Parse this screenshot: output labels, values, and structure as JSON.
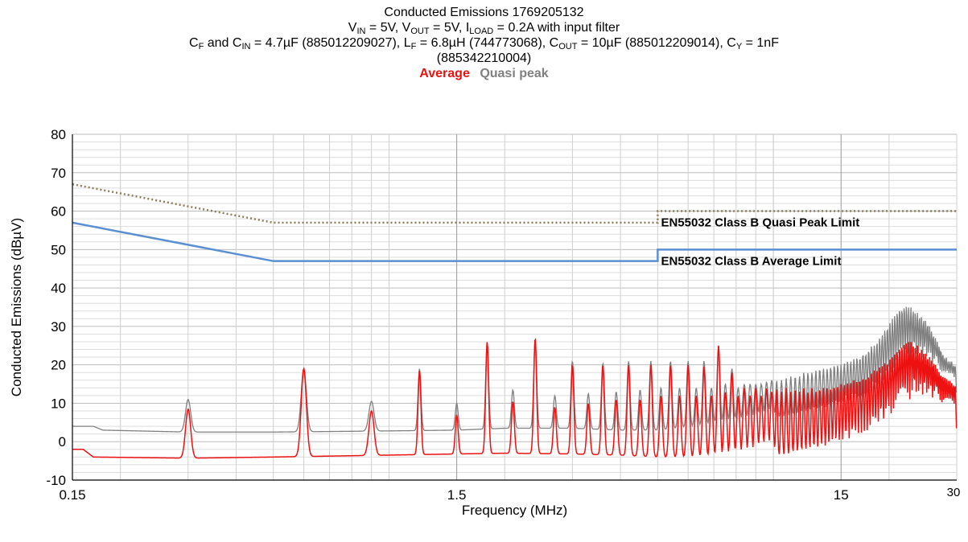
{
  "title": {
    "line1": "Conducted Emissions 1769205132",
    "line2": [
      {
        "t": "V"
      },
      {
        "t": "IN",
        "sub": true
      },
      {
        "t": " = 5V, V"
      },
      {
        "t": "OUT",
        "sub": true
      },
      {
        "t": " = 5V, I"
      },
      {
        "t": "LOAD",
        "sub": true
      },
      {
        "t": " = 0.2A with input filter"
      }
    ],
    "line3": [
      {
        "t": "C"
      },
      {
        "t": "F",
        "sub": true
      },
      {
        "t": " and C"
      },
      {
        "t": "IN",
        "sub": true
      },
      {
        "t": " = 4.7µF (885012209027), L"
      },
      {
        "t": "F",
        "sub": true
      },
      {
        "t": " = 6.8µH (744773068), C"
      },
      {
        "t": "OUT",
        "sub": true
      },
      {
        "t": " = 10µF (885012209014), C"
      },
      {
        "t": "Y",
        "sub": true
      },
      {
        "t": " = 1nF"
      }
    ],
    "line4": "(885342210004)"
  },
  "legend": {
    "average": "Average",
    "quasi_peak": "Quasi peak"
  },
  "colors": {
    "average": "#ee1111",
    "quasi_peak": "#808080",
    "avg_limit": "#5b8fd4",
    "qp_limit": "#8c7d58",
    "grid": "#c8c8c8",
    "axis": "#000000"
  },
  "chart_data": {
    "type": "line",
    "x_scale": "log",
    "xlabel": "Frequency (MHz)",
    "ylabel": "Conducted Emissions (dBµV)",
    "xlim": [
      0.15,
      30
    ],
    "ylim": [
      -10,
      80
    ],
    "y_ticks": [
      -10,
      0,
      10,
      20,
      30,
      40,
      50,
      60,
      70,
      80
    ],
    "x_ticks": [
      {
        "v": 0.15,
        "label": "0.15"
      },
      {
        "v": 1.5,
        "label": "1.5"
      },
      {
        "v": 15,
        "label": "15"
      },
      {
        "v": 30,
        "label": "30"
      }
    ],
    "grid": true,
    "limits": [
      {
        "name": "EN55032 Class B Quasi Peak Limit",
        "style": "dotted",
        "points": [
          [
            0.15,
            67
          ],
          [
            0.5,
            57
          ],
          [
            5,
            57
          ],
          [
            5,
            60
          ],
          [
            30,
            60
          ]
        ]
      },
      {
        "name": "EN55032 Class B Average Limit",
        "style": "solid",
        "points": [
          [
            0.15,
            57
          ],
          [
            0.5,
            47
          ],
          [
            5,
            47
          ],
          [
            5,
            50
          ],
          [
            30,
            50
          ]
        ]
      }
    ],
    "quasi_peak_baseline": [
      [
        0.15,
        4
      ],
      [
        0.17,
        4
      ],
      [
        0.18,
        3
      ],
      [
        0.3,
        2.5
      ],
      [
        0.5,
        2.5
      ],
      [
        1,
        2.8
      ],
      [
        1.5,
        3
      ],
      [
        2,
        3.5
      ],
      [
        3,
        3.5
      ],
      [
        4,
        3
      ],
      [
        5,
        3
      ],
      [
        8,
        5
      ],
      [
        15,
        8
      ],
      [
        30,
        10
      ]
    ],
    "average_baseline": [
      [
        0.15,
        -2
      ],
      [
        0.16,
        -2
      ],
      [
        0.17,
        -4
      ],
      [
        0.3,
        -4.3
      ],
      [
        0.5,
        -4
      ],
      [
        1,
        -3.5
      ],
      [
        1.5,
        -3.2
      ],
      [
        2,
        -3
      ],
      [
        3,
        -3.2
      ],
      [
        4,
        -3.5
      ],
      [
        5,
        -4
      ],
      [
        8,
        -4.3
      ],
      [
        15,
        -3
      ],
      [
        30,
        -1
      ]
    ],
    "peaks": [
      {
        "f": 0.3,
        "avg": 8.5,
        "qp": 11
      },
      {
        "f": 0.6,
        "avg": 19,
        "qp": 19
      },
      {
        "f": 0.9,
        "avg": 8,
        "qp": 10.5
      },
      {
        "f": 1.2,
        "avg": 18.5,
        "qp": 19
      },
      {
        "f": 1.5,
        "avg": 7,
        "qp": 10
      },
      {
        "f": 1.8,
        "avg": 26,
        "qp": 26
      },
      {
        "f": 2.1,
        "avg": 10.5,
        "qp": 13.5
      },
      {
        "f": 2.4,
        "avg": 27,
        "qp": 27
      },
      {
        "f": 2.7,
        "avg": 9,
        "qp": 12
      },
      {
        "f": 3.0,
        "avg": 20,
        "qp": 21
      },
      {
        "f": 3.3,
        "avg": 10,
        "qp": 12.5
      },
      {
        "f": 3.6,
        "avg": 20,
        "qp": 20.5
      },
      {
        "f": 3.9,
        "avg": 11,
        "qp": 13
      },
      {
        "f": 4.2,
        "avg": 20,
        "qp": 21
      },
      {
        "f": 4.5,
        "avg": 11,
        "qp": 13.5
      },
      {
        "f": 4.8,
        "avg": 20,
        "qp": 21
      },
      {
        "f": 5.1,
        "avg": 12,
        "qp": 14
      },
      {
        "f": 5.4,
        "avg": 20,
        "qp": 21
      },
      {
        "f": 5.7,
        "avg": 12,
        "qp": 14
      },
      {
        "f": 6.0,
        "avg": 20,
        "qp": 21
      },
      {
        "f": 6.3,
        "avg": 12,
        "qp": 14
      },
      {
        "f": 6.6,
        "avg": 19.5,
        "qp": 21
      },
      {
        "f": 6.9,
        "avg": 12,
        "qp": 14
      },
      {
        "f": 7.2,
        "avg": 25,
        "qp": 25
      },
      {
        "f": 7.5,
        "avg": 13,
        "qp": 15
      },
      {
        "f": 7.8,
        "avg": 18,
        "qp": 19
      },
      {
        "f": 8.1,
        "avg": 12,
        "qp": 14
      },
      {
        "f": 8.4,
        "avg": 14,
        "qp": 15
      },
      {
        "f": 8.7,
        "avg": 12,
        "qp": 15
      },
      {
        "f": 9.0,
        "avg": 14,
        "qp": 15
      },
      {
        "f": 9.3,
        "avg": 12,
        "qp": 15
      },
      {
        "f": 9.6,
        "avg": 14,
        "qp": 15.5
      },
      {
        "f": 9.9,
        "avg": 13,
        "qp": 16
      },
      {
        "f": 10.2,
        "avg": 14,
        "qp": 16
      },
      {
        "f": 10.5,
        "avg": 13,
        "qp": 16
      },
      {
        "f": 10.8,
        "avg": 14,
        "qp": 16.5
      },
      {
        "f": 11.1,
        "avg": 13,
        "qp": 17
      },
      {
        "f": 11.4,
        "avg": 14,
        "qp": 17
      },
      {
        "f": 11.7,
        "avg": 13,
        "qp": 17
      },
      {
        "f": 12.0,
        "avg": 14,
        "qp": 18
      },
      {
        "f": 12.3,
        "avg": 13,
        "qp": 18
      },
      {
        "f": 12.6,
        "avg": 14,
        "qp": 18
      },
      {
        "f": 12.9,
        "avg": 13,
        "qp": 18.5
      },
      {
        "f": 13.2,
        "avg": 14,
        "qp": 19
      },
      {
        "f": 13.5,
        "avg": 14,
        "qp": 19
      },
      {
        "f": 13.8,
        "avg": 14,
        "qp": 19
      },
      {
        "f": 14.1,
        "avg": 14,
        "qp": 19.5
      },
      {
        "f": 14.4,
        "avg": 14.5,
        "qp": 20
      },
      {
        "f": 14.7,
        "avg": 14.5,
        "qp": 20
      },
      {
        "f": 15.0,
        "avg": 15,
        "qp": 20
      },
      {
        "f": 15.3,
        "avg": 15,
        "qp": 20.5
      },
      {
        "f": 15.6,
        "avg": 15.5,
        "qp": 21
      },
      {
        "f": 15.9,
        "avg": 15.5,
        "qp": 21
      },
      {
        "f": 16.2,
        "avg": 16,
        "qp": 21.5
      },
      {
        "f": 16.5,
        "avg": 16,
        "qp": 22
      },
      {
        "f": 16.8,
        "avg": 16.5,
        "qp": 22
      },
      {
        "f": 17.1,
        "avg": 17,
        "qp": 23
      },
      {
        "f": 17.4,
        "avg": 17,
        "qp": 23
      },
      {
        "f": 17.7,
        "avg": 17.5,
        "qp": 24
      },
      {
        "f": 18.0,
        "avg": 18,
        "qp": 25
      },
      {
        "f": 18.3,
        "avg": 18.5,
        "qp": 25
      },
      {
        "f": 18.6,
        "avg": 19,
        "qp": 26
      },
      {
        "f": 18.9,
        "avg": 19.5,
        "qp": 27
      },
      {
        "f": 19.2,
        "avg": 20,
        "qp": 28
      },
      {
        "f": 19.5,
        "avg": 20.5,
        "qp": 29
      },
      {
        "f": 19.8,
        "avg": 21,
        "qp": 30
      },
      {
        "f": 20.1,
        "avg": 21.5,
        "qp": 31
      },
      {
        "f": 20.4,
        "avg": 22,
        "qp": 32
      },
      {
        "f": 20.7,
        "avg": 23,
        "qp": 33
      },
      {
        "f": 21.0,
        "avg": 24,
        "qp": 34
      },
      {
        "f": 21.3,
        "avg": 25,
        "qp": 35
      },
      {
        "f": 21.6,
        "avg": 25.5,
        "qp": 35
      },
      {
        "f": 21.9,
        "avg": 26,
        "qp": 35.5
      },
      {
        "f": 22.2,
        "avg": 26,
        "qp": 35.5
      },
      {
        "f": 22.5,
        "avg": 26,
        "qp": 35
      },
      {
        "f": 22.8,
        "avg": 26,
        "qp": 35
      },
      {
        "f": 23.1,
        "avg": 25.5,
        "qp": 34.5
      },
      {
        "f": 23.4,
        "avg": 25,
        "qp": 34
      },
      {
        "f": 23.7,
        "avg": 25,
        "qp": 33.5
      },
      {
        "f": 24.0,
        "avg": 24,
        "qp": 33
      },
      {
        "f": 24.3,
        "avg": 24,
        "qp": 32.5
      },
      {
        "f": 24.6,
        "avg": 23.5,
        "qp": 32
      },
      {
        "f": 24.9,
        "avg": 23,
        "qp": 31.5
      },
      {
        "f": 25.2,
        "avg": 22.5,
        "qp": 31
      },
      {
        "f": 25.5,
        "avg": 22,
        "qp": 30
      },
      {
        "f": 25.8,
        "avg": 21.5,
        "qp": 29
      },
      {
        "f": 26.1,
        "avg": 21,
        "qp": 28
      },
      {
        "f": 26.4,
        "avg": 20,
        "qp": 27
      },
      {
        "f": 26.7,
        "avg": 19,
        "qp": 26
      },
      {
        "f": 27.0,
        "avg": 18.5,
        "qp": 25
      },
      {
        "f": 27.3,
        "avg": 18,
        "qp": 24
      },
      {
        "f": 27.6,
        "avg": 17.5,
        "qp": 23
      },
      {
        "f": 27.9,
        "avg": 17,
        "qp": 22
      },
      {
        "f": 28.2,
        "avg": 16.5,
        "qp": 22
      },
      {
        "f": 28.5,
        "avg": 16,
        "qp": 21
      },
      {
        "f": 28.8,
        "avg": 16,
        "qp": 21
      },
      {
        "f": 29.1,
        "avg": 15.5,
        "qp": 21
      },
      {
        "f": 29.4,
        "avg": 15,
        "qp": 20
      },
      {
        "f": 29.7,
        "avg": 15,
        "qp": 20
      }
    ]
  }
}
